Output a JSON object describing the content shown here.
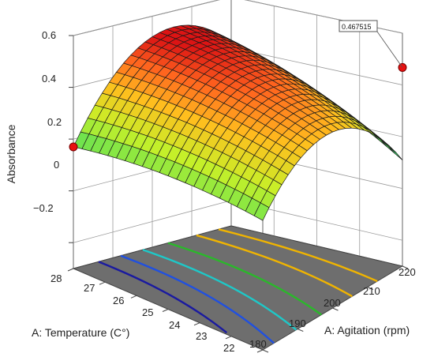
{
  "chart_data": {
    "type": "surface3d",
    "xlabel": "A: Temperature (C°)",
    "ylabel": "A: Agitation (rpm)",
    "zlabel": "Absorbance",
    "x_ticks": [
      "22",
      "23",
      "24",
      "25",
      "26",
      "27",
      "28"
    ],
    "y_ticks": [
      "180",
      "190",
      "200",
      "210",
      "220"
    ],
    "z_ticks": [
      "−0.2",
      "0",
      "0.2",
      "0.4",
      "0.6"
    ],
    "xlim": [
      22,
      28
    ],
    "ylim": [
      180,
      220
    ],
    "zlim": [
      -0.3,
      0.6
    ],
    "grid": true,
    "surface": {
      "description_points": [
        {
          "temperature": 28,
          "agitation": 180,
          "absorbance": 0.17
        },
        {
          "temperature": 22,
          "agitation": 220,
          "absorbance": 0.4675
        },
        {
          "temperature": 28,
          "agitation": 220,
          "absorbance": 0.5
        },
        {
          "temperature": 22,
          "agitation": 180,
          "absorbance": -0.32
        },
        {
          "temperature": 25,
          "agitation": 200,
          "absorbance": 0.45
        }
      ]
    },
    "highlight_points": [
      {
        "temperature": 28,
        "agitation": 180,
        "absorbance": 0.17
      },
      {
        "temperature": 22,
        "agitation": 220,
        "absorbance": 0.467515
      }
    ],
    "callout_label": "0.467515",
    "contour_colors": [
      "#f0b400",
      "#2ab82a",
      "#1ec8c8",
      "#2050e0",
      "#1a1aa0"
    ]
  }
}
